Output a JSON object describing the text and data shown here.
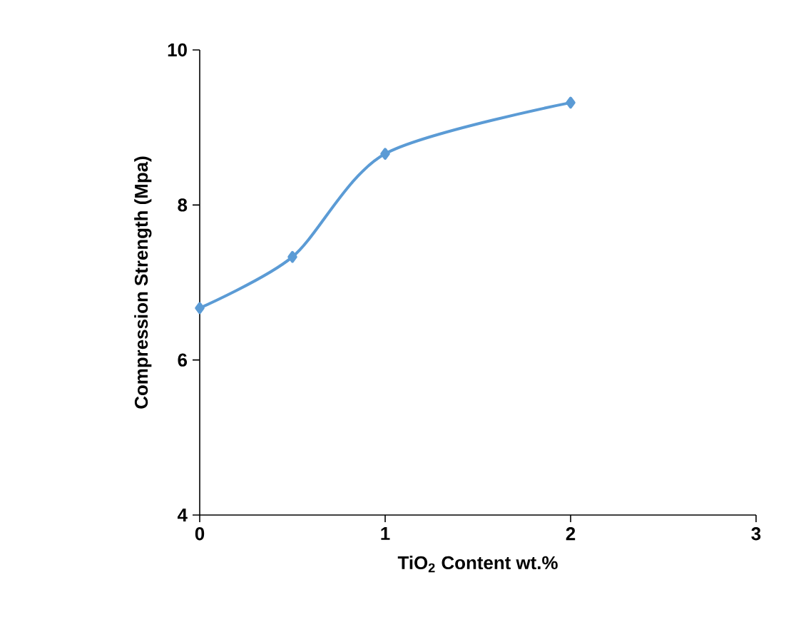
{
  "chart_data": {
    "type": "line",
    "xlabel": "TiO$_{2}$ Content wt.%",
    "ylabel": "Compression Strength (Mpa)",
    "x": [
      0,
      0.5,
      1,
      2
    ],
    "series": [
      {
        "color": "#5b9bd5",
        "values": [
          6.67,
          7.33,
          8.66,
          9.32
        ]
      }
    ],
    "xlim": [
      0,
      3
    ],
    "ylim": [
      4,
      10
    ],
    "xticks": [
      0,
      1,
      2,
      3
    ],
    "yticks": [
      4,
      6,
      8,
      10
    ],
    "marker": "diamond",
    "line_style": "solid",
    "grid": false
  }
}
